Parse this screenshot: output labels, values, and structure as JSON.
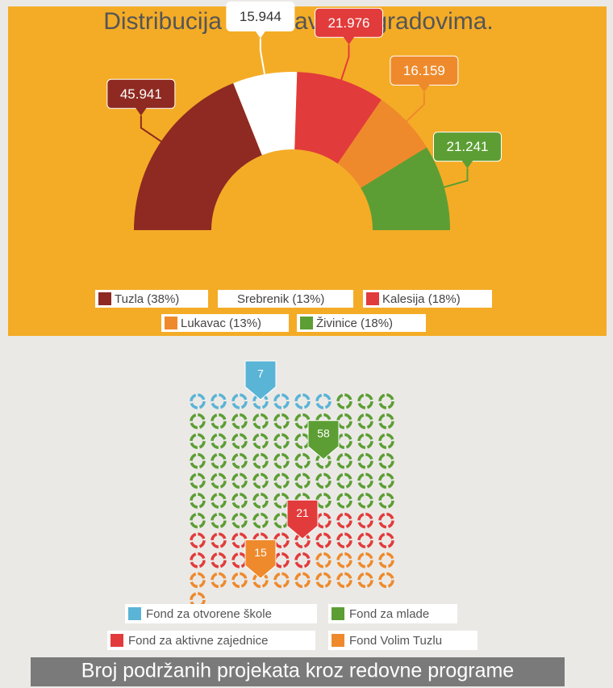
{
  "chart_data": [
    {
      "type": "pie",
      "title": "Distribucija sredstava po gradovima.",
      "categories": [
        "Tuzla (38%)",
        "Srebrenik (13%)",
        "Kalesija (18%)",
        "Lukavac (13%)",
        "Živinice (18%)"
      ],
      "values": [
        45.941,
        15.944,
        21.976,
        16.159,
        21.241
      ],
      "colors": [
        "#8e2a22",
        "#ffffff",
        "#e23b3b",
        "#ee8a2c",
        "#5c9e34"
      ],
      "legend": "bottom"
    },
    {
      "type": "waffle",
      "title": "Broj podržanih projekata kroz redovne programe",
      "categories": [
        "Fond za otvorene škole",
        "Fond za mlade",
        "Fond za aktivne zajednice",
        "Fond Volim Tuzlu"
      ],
      "values": [
        7,
        58,
        21,
        15
      ],
      "colors": [
        "#5ab4d6",
        "#5c9e34",
        "#e23b3b",
        "#ee8a2c"
      ],
      "legend": "bottom"
    }
  ]
}
